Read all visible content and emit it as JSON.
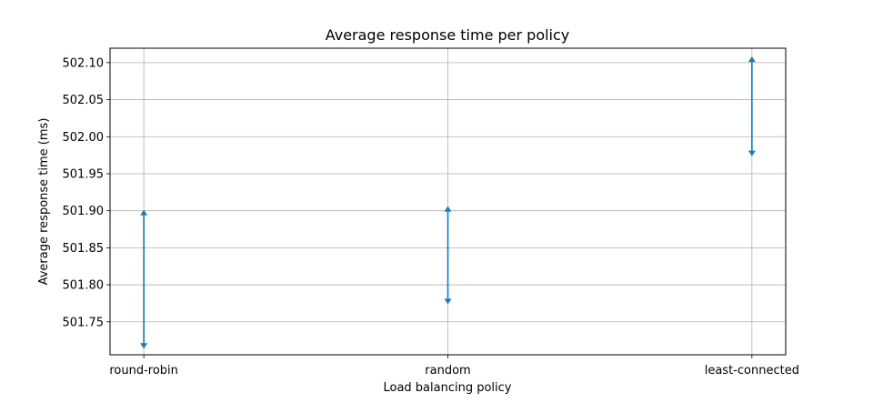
{
  "chart_data": {
    "type": "errorbar",
    "title": "Average response time per policy",
    "xlabel": "Load balancing policy",
    "ylabel": "Average response time (ms)",
    "categories": [
      "round-robin",
      "random",
      "least-connected"
    ],
    "series": [
      {
        "lower": [
          501.715,
          501.775,
          501.975
        ],
        "upper": [
          501.9,
          501.905,
          502.107
        ],
        "color": "#1f77b4"
      }
    ],
    "ylim": [
      501.7055,
      502.1195
    ],
    "yticks": [
      "501.75",
      "501.80",
      "501.85",
      "501.90",
      "501.95",
      "502.00",
      "502.05",
      "502.10"
    ],
    "grid": true,
    "legend": "none"
  }
}
